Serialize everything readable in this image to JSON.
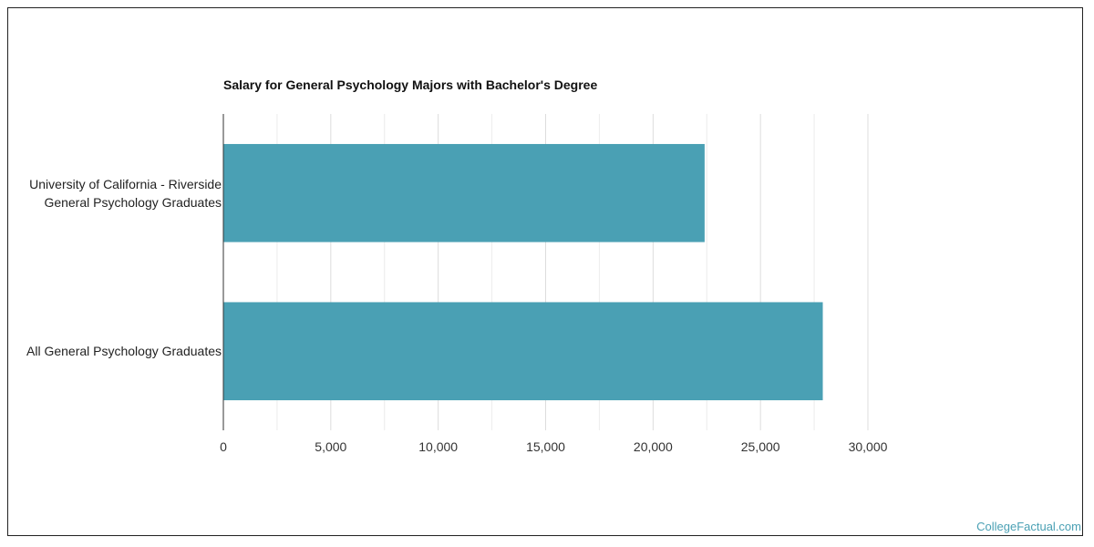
{
  "chart_data": {
    "type": "bar",
    "orientation": "horizontal",
    "title": "Salary for General Psychology Majors with Bachelor's Degree",
    "categories": [
      [
        "University of California - Riverside",
        "General Psychology Graduates"
      ],
      [
        "All General Psychology Graduates"
      ]
    ],
    "values": [
      22400,
      27900
    ],
    "xlim": [
      0,
      30000
    ],
    "xticks": [
      0,
      5000,
      10000,
      15000,
      20000,
      25000,
      30000
    ],
    "xtick_labels": [
      "0",
      "5,000",
      "10,000",
      "15,000",
      "20,000",
      "25,000",
      "30,000"
    ],
    "grid": true,
    "bar_color": "#4aa0b4",
    "grid_color": "#dddddd",
    "axis_color": "#333333"
  },
  "watermark": "CollegeFactual.com"
}
